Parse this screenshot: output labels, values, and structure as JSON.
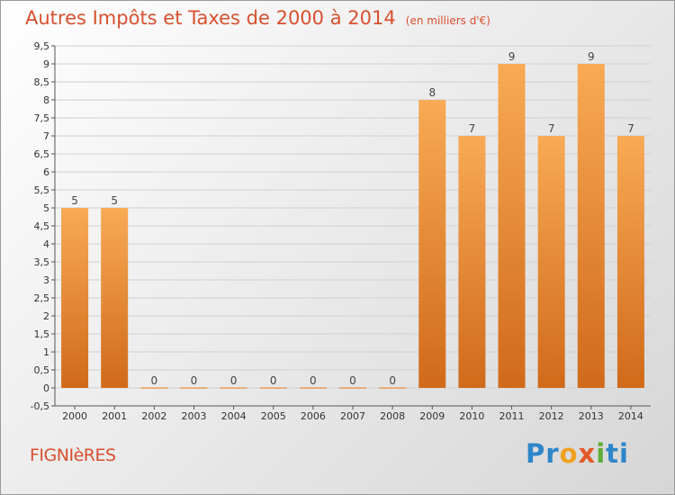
{
  "title": "Autres Impôts et Taxes de 2000 à 2014",
  "subtitle": "(en milliers d'€)",
  "commune": "FIGNIèRES",
  "logo": {
    "p1": "Pr",
    "p2": "o",
    "p3": "x",
    "p4": "i",
    "p5": "ti"
  },
  "colors": {
    "title": "#d85030",
    "bar_light": "#f8aa55",
    "bar_dark": "#d06a1a",
    "grid": "#d0d0d0"
  },
  "chart_data": {
    "type": "bar",
    "categories": [
      "2000",
      "2001",
      "2002",
      "2003",
      "2004",
      "2005",
      "2006",
      "2007",
      "2008",
      "2009",
      "2010",
      "2011",
      "2012",
      "2013",
      "2014"
    ],
    "values": [
      5,
      5,
      0,
      0,
      0,
      0,
      0,
      0,
      0,
      8,
      7,
      9,
      7,
      9,
      7
    ],
    "data_labels": [
      "5",
      "5",
      "0",
      "0",
      "0",
      "0",
      "0",
      "0",
      "0",
      "8",
      "7",
      "9",
      "7",
      "9",
      "7"
    ],
    "ylim": [
      -0.5,
      9.5
    ],
    "y_ticks": [
      "-0,5",
      "0",
      "0,5",
      "1",
      "1,5",
      "2",
      "2,5",
      "3",
      "3,5",
      "4",
      "4,5",
      "5",
      "5,5",
      "6",
      "6,5",
      "7",
      "7,5",
      "8",
      "8,5",
      "9",
      "9,5"
    ],
    "y_tick_values": [
      -0.5,
      0,
      0.5,
      1,
      1.5,
      2,
      2.5,
      3,
      3.5,
      4,
      4.5,
      5,
      5.5,
      6,
      6.5,
      7,
      7.5,
      8,
      8.5,
      9,
      9.5
    ],
    "grid": true
  }
}
